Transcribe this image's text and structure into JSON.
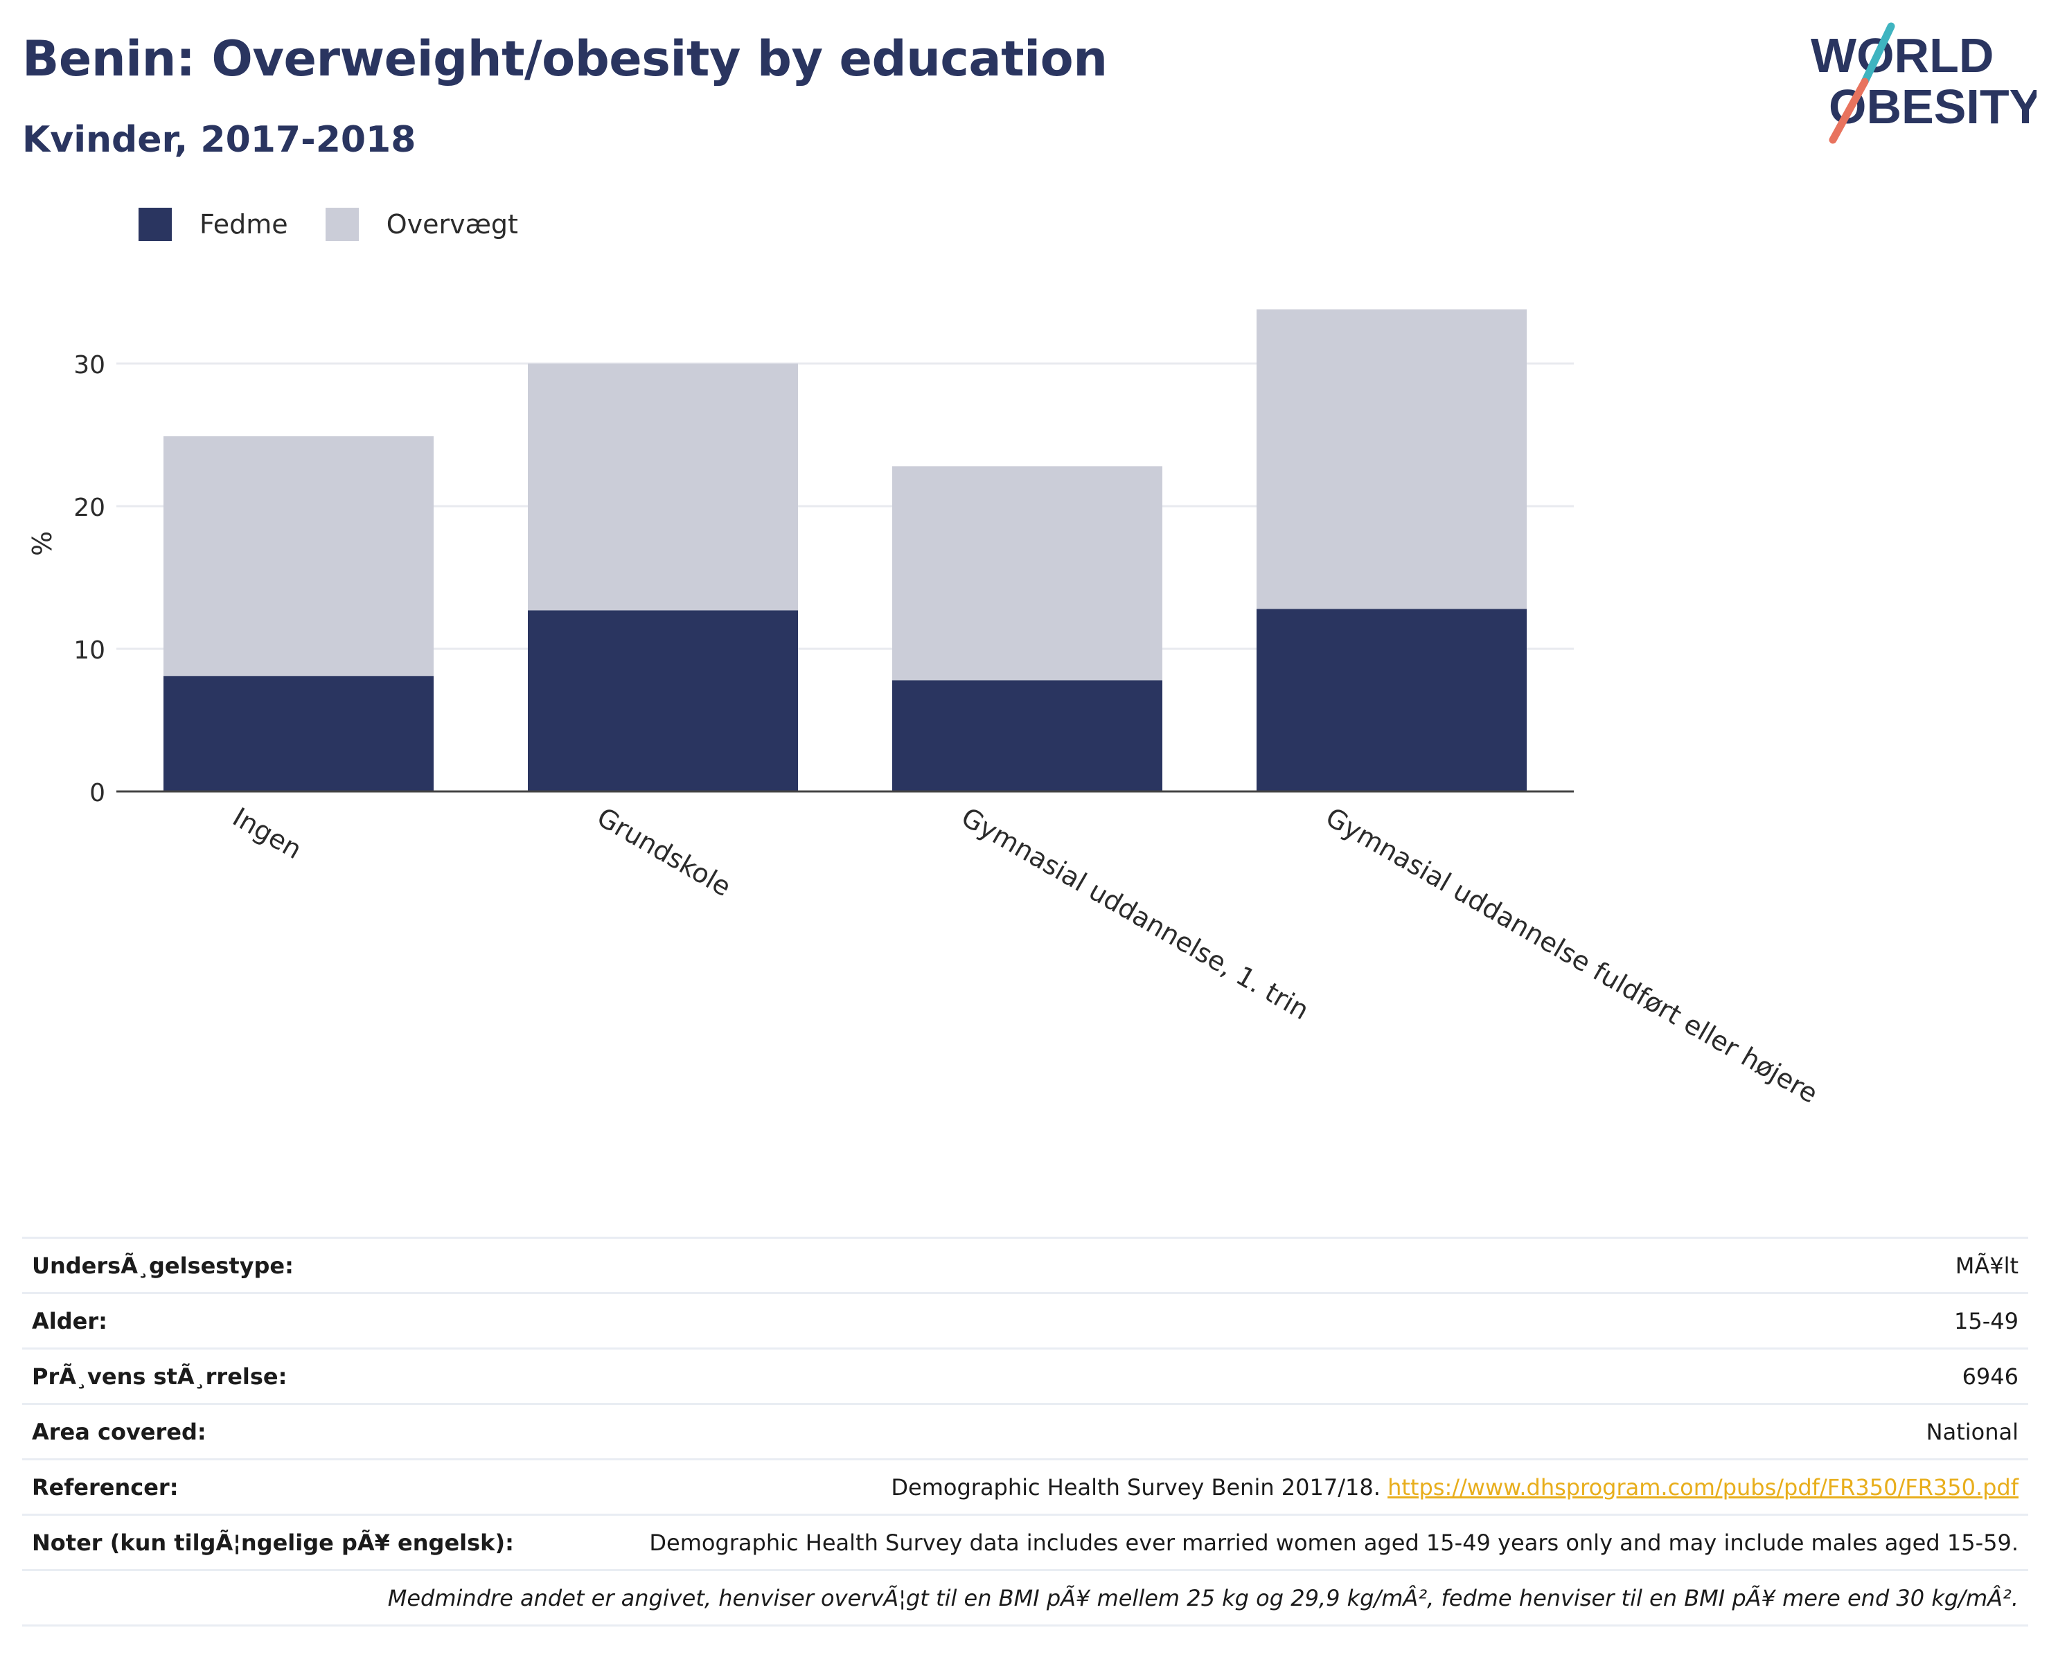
{
  "header": {
    "title": "Benin: Overweight/obesity by education",
    "subtitle": "Kvinder, 2017-2018"
  },
  "logo": {
    "line1": "WORLD",
    "line2": "OBESITY",
    "colors": {
      "text": "#2a3560",
      "stroke_teal": "#3fb4c0",
      "stroke_coral": "#e8735e"
    }
  },
  "legend": [
    {
      "label": "Fedme",
      "color": "#2a3560"
    },
    {
      "label": "Overvægt",
      "color": "#cbcdd8"
    }
  ],
  "chart_data": {
    "type": "bar",
    "stacked": true,
    "categories": [
      "Ingen",
      "Grundskole",
      "Gymnasial uddannelse, 1. trin",
      "Gymnasial uddannelse fuldført eller højere"
    ],
    "series": [
      {
        "name": "Fedme",
        "values": [
          8.1,
          12.7,
          7.8,
          12.8
        ],
        "color": "#2a3560"
      },
      {
        "name": "Overvægt",
        "values": [
          16.8,
          17.3,
          15.0,
          21.0
        ],
        "color": "#cbcdd8"
      }
    ],
    "ylabel": "%",
    "xlabel": "",
    "yticks": [
      0,
      10,
      20,
      30
    ],
    "ylim": [
      0,
      35
    ],
    "grid": true,
    "legend_position": "top-left"
  },
  "info": {
    "rows": [
      {
        "key": "UndersÃ¸gelsestype:",
        "value": "MÃ¥lt"
      },
      {
        "key": "Alder:",
        "value": "15-49"
      },
      {
        "key": "PrÃ¸vens stÃ¸rrelse:",
        "value": "6946"
      },
      {
        "key": "Area covered:",
        "value": "National"
      }
    ],
    "ref_key": "Referencer:",
    "ref_text": "Demographic Health Survey Benin 2017/18. ",
    "ref_link": "https://www.dhsprogram.com/pubs/pdf/FR350/FR350.pdf",
    "notes_key": "Noter (kun tilgÃ¦ngelige pÃ¥ engelsk):",
    "notes_text": "Demographic Health Survey data includes ever married women aged 15-49 years only and may include males aged 15-59.",
    "footnote": "Medmindre andet er angivet, henviser overvÃ¦gt til en BMI pÃ¥ mellem 25 kg og 29,9 kg/mÂ², fedme henviser til en BMI pÃ¥ mere end 30 kg/mÂ²."
  }
}
